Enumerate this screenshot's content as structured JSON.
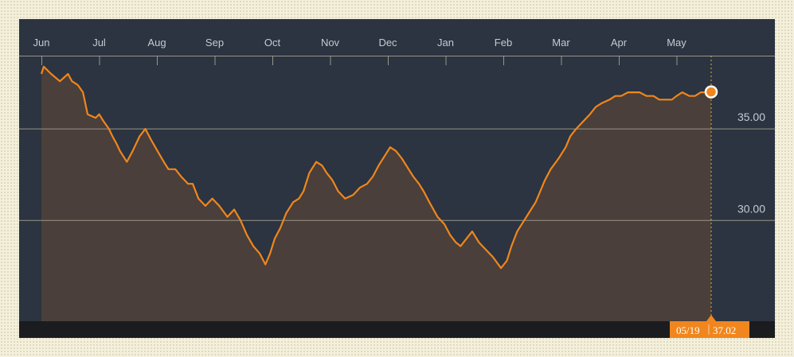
{
  "colors": {
    "background": "#2b3440",
    "line": "#f0861d",
    "area": "#4a3f3a",
    "grid": "#9a9588",
    "axis_bar": "#1a1c20",
    "badge": "#f0861d"
  },
  "chart_data": {
    "type": "area",
    "title": "",
    "xlabel": "",
    "ylabel": "",
    "x_tick_labels": [
      "Jun",
      "Jul",
      "Aug",
      "Sep",
      "Oct",
      "Nov",
      "Dec",
      "Jan",
      "Feb",
      "Mar",
      "Apr",
      "May"
    ],
    "y_ticks": [
      30,
      35
    ],
    "y_tick_labels": [
      "30.00",
      "35.00"
    ],
    "ylim": [
      24.5,
      39
    ],
    "grid": "horizontal",
    "legend": "none",
    "series": [
      {
        "x": [
          0.0,
          0.04,
          0.17,
          0.32,
          0.46,
          0.53,
          0.63,
          0.72,
          0.8,
          0.94,
          1.0,
          1.08,
          1.17,
          1.23,
          1.3,
          1.36,
          1.48,
          1.58,
          1.7,
          1.8,
          1.9,
          2.01,
          2.12,
          2.2,
          2.32,
          2.42,
          2.54,
          2.62,
          2.72,
          2.84,
          2.96,
          3.08,
          3.22,
          3.34,
          3.45,
          3.56,
          3.67,
          3.78,
          3.88,
          3.96,
          4.04,
          4.14,
          4.24,
          4.36,
          4.46,
          4.54,
          4.64,
          4.76,
          4.86,
          4.94,
          5.04,
          5.14,
          5.26,
          5.4,
          5.52,
          5.64,
          5.74,
          5.84,
          5.96,
          6.04,
          6.14,
          6.24,
          6.36,
          6.44,
          6.54,
          6.62,
          6.72,
          6.86,
          6.98,
          7.08,
          7.18,
          7.26,
          7.36,
          7.46,
          7.58,
          7.7,
          7.82,
          7.96,
          8.06,
          8.14,
          8.24,
          8.36,
          8.48,
          8.56,
          8.64,
          8.72,
          8.82,
          8.96,
          9.08,
          9.16,
          9.26,
          9.38,
          9.5,
          9.6,
          9.7,
          9.84,
          9.94,
          10.04,
          10.16,
          10.26,
          10.36,
          10.48,
          10.6,
          10.7,
          10.82,
          10.92,
          11.0,
          11.1,
          11.22,
          11.32,
          11.42,
          11.52,
          11.6
        ],
        "y": [
          38.0,
          38.4,
          38.0,
          37.6,
          38.0,
          37.6,
          37.4,
          37.0,
          35.8,
          35.6,
          35.8,
          35.4,
          35.0,
          34.6,
          34.2,
          33.8,
          33.2,
          33.8,
          34.6,
          35.0,
          34.4,
          33.8,
          33.2,
          32.8,
          32.8,
          32.4,
          32.0,
          32.0,
          31.2,
          30.8,
          31.2,
          30.8,
          30.2,
          30.6,
          30.0,
          29.2,
          28.6,
          28.2,
          27.6,
          28.2,
          29.0,
          29.6,
          30.4,
          31.0,
          31.2,
          31.6,
          32.6,
          33.2,
          33.0,
          32.6,
          32.2,
          31.6,
          31.2,
          31.4,
          31.8,
          32.0,
          32.4,
          33.0,
          33.6,
          34.0,
          33.8,
          33.4,
          32.8,
          32.4,
          32.0,
          31.6,
          31.0,
          30.2,
          29.8,
          29.2,
          28.8,
          28.6,
          29.0,
          29.4,
          28.8,
          28.4,
          28.0,
          27.4,
          27.8,
          28.6,
          29.4,
          30.0,
          30.6,
          31.0,
          31.6,
          32.2,
          32.8,
          33.4,
          34.0,
          34.6,
          35.0,
          35.4,
          35.8,
          36.2,
          36.4,
          36.6,
          36.8,
          36.8,
          37.0,
          37.0,
          37.0,
          36.8,
          36.8,
          36.6,
          36.6,
          36.6,
          36.8,
          37.0,
          36.8,
          36.8,
          37.0,
          37.0,
          37.02
        ]
      }
    ],
    "last_point": {
      "date": "05/19",
      "value": "37.02"
    }
  }
}
